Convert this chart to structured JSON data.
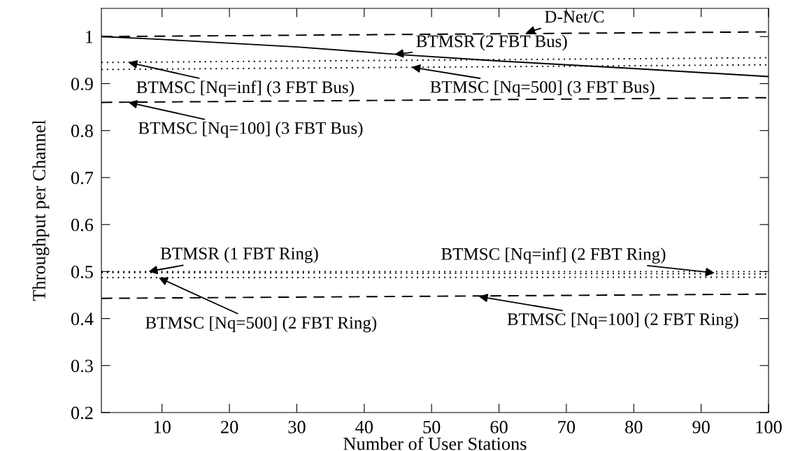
{
  "chart_data": {
    "type": "line",
    "xlabel": "Number of User Stations",
    "ylabel": "Throughput per Channel",
    "xlim": [
      1,
      100
    ],
    "ylim": [
      0.2,
      1.06
    ],
    "xticks": [
      10,
      20,
      30,
      40,
      50,
      60,
      70,
      80,
      90,
      100
    ],
    "yticks": [
      0.2,
      0.3,
      0.4,
      0.5,
      0.6,
      0.7,
      0.8,
      0.9,
      1
    ],
    "grid": false,
    "legend": false,
    "marker": "none",
    "series": [
      {
        "color": "#000000",
        "line_style": "dashed",
        "x": [
          1,
          100
        ],
        "values": [
          1.0,
          1.01
        ]
      },
      {
        "color": "#000000",
        "line_style": "solid",
        "x": [
          1,
          10,
          30,
          45,
          60,
          80,
          100
        ],
        "values": [
          1.0,
          0.994,
          0.978,
          0.962,
          0.948,
          0.932,
          0.915
        ]
      },
      {
        "color": "#000000",
        "line_style": "dotted",
        "x": [
          1,
          100
        ],
        "values": [
          0.945,
          0.955
        ]
      },
      {
        "color": "#000000",
        "line_style": "dotted",
        "x": [
          1,
          100
        ],
        "values": [
          0.93,
          0.94
        ]
      },
      {
        "color": "#000000",
        "line_style": "dashed",
        "x": [
          1,
          100
        ],
        "values": [
          0.86,
          0.87
        ]
      },
      {
        "color": "#000000",
        "line_style": "dotted",
        "x": [
          1,
          100
        ],
        "values": [
          0.5,
          0.5
        ]
      },
      {
        "color": "#000000",
        "line_style": "dotted",
        "x": [
          1,
          100
        ],
        "values": [
          0.498,
          0.495
        ]
      },
      {
        "color": "#000000",
        "line_style": "dotted",
        "x": [
          1,
          100
        ],
        "values": [
          0.487,
          0.488
        ]
      },
      {
        "color": "#000000",
        "line_style": "dashed",
        "x": [
          1,
          100
        ],
        "values": [
          0.443,
          0.452
        ]
      }
    ],
    "annotations": [
      {
        "text": "D-Net/C",
        "x": 64,
        "y": 1.008
      },
      {
        "text": "BTMSR (2 FBT Bus)",
        "x": 44.5,
        "y": 0.962
      },
      {
        "text": "BTMSC [Nq=500] (3 FBT Bus)",
        "x": 47,
        "y": 0.935
      },
      {
        "text": "BTMSC [Nq=inf] (3 FBT Bus)",
        "x": 5,
        "y": 0.945
      },
      {
        "text": "BTMSC [Nq=100] (3 FBT Bus)",
        "x": 5,
        "y": 0.86
      },
      {
        "text": "BTMSR (1 FBT Ring)",
        "x": 8,
        "y": 0.5
      },
      {
        "text": "BTMSC [Nq=500] (2 FBT Ring)",
        "x": 9.5,
        "y": 0.487
      },
      {
        "text": "BTMSC [Nq=inf] (2 FBT Ring)",
        "x": 92,
        "y": 0.497
      },
      {
        "text": "BTMSC [Nq=100] (2 FBT Ring)",
        "x": 57,
        "y": 0.447
      }
    ]
  }
}
